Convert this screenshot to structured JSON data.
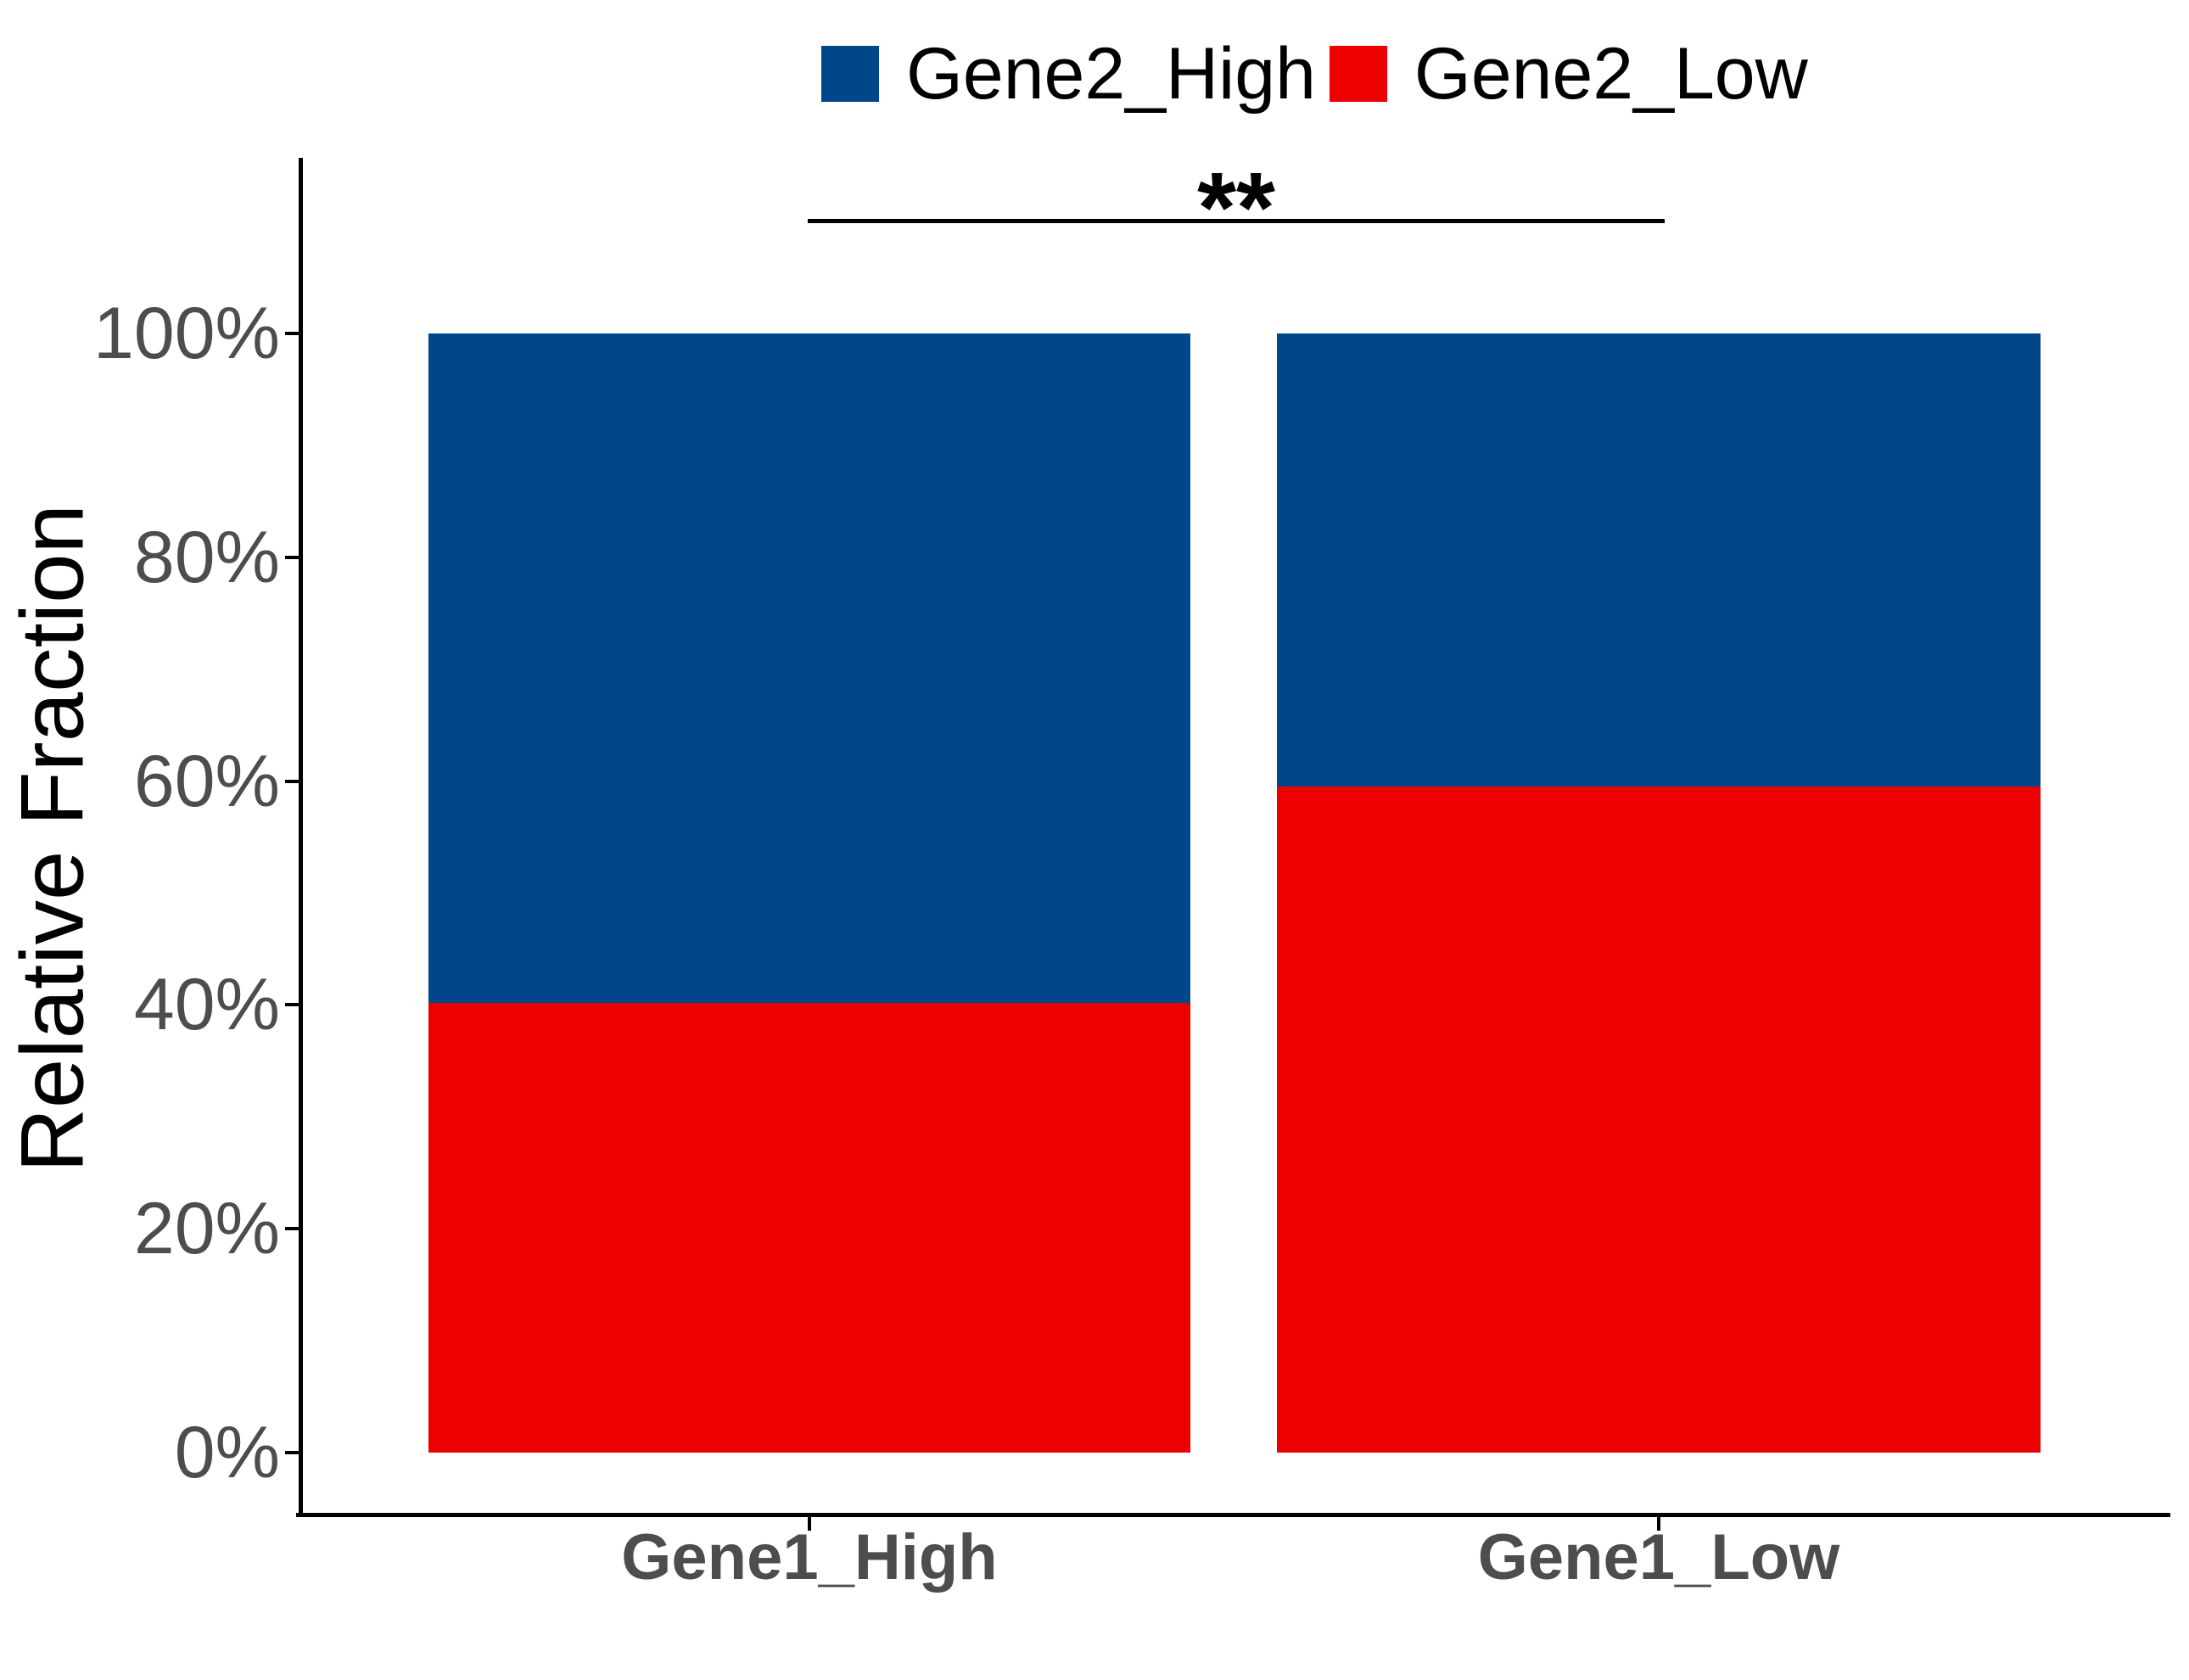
{
  "legend": {
    "items": [
      {
        "label": "Gene2_High",
        "color": "#00468B"
      },
      {
        "label": "Gene2_Low",
        "color": "#ED0000"
      }
    ]
  },
  "annotation": {
    "text": "**"
  },
  "y_axis": {
    "title": "Relative Fraction",
    "tick_label_color": "#4D4D4D"
  },
  "chart_data": {
    "type": "bar",
    "subtype": "stacked-percent",
    "title": "",
    "xlabel": "",
    "ylabel": "Relative Fraction",
    "ylim": [
      0,
      100
    ],
    "grid": false,
    "legend_position": "top",
    "categories": [
      "Gene1_High",
      "Gene1_Low"
    ],
    "yticks": [
      {
        "label": "0%",
        "value": 0
      },
      {
        "label": "20%",
        "value": 20
      },
      {
        "label": "40%",
        "value": 40
      },
      {
        "label": "60%",
        "value": 60
      },
      {
        "label": "80%",
        "value": 80
      },
      {
        "label": "100%",
        "value": 100
      }
    ],
    "series": [
      {
        "name": "Gene2_High",
        "color": "#00468B",
        "values": [
          59.8,
          40.5
        ]
      },
      {
        "name": "Gene2_Low",
        "color": "#ED0000",
        "values": [
          40.2,
          59.5
        ]
      }
    ],
    "significance": {
      "label": "**",
      "between": [
        "Gene1_High",
        "Gene1_Low"
      ]
    }
  }
}
